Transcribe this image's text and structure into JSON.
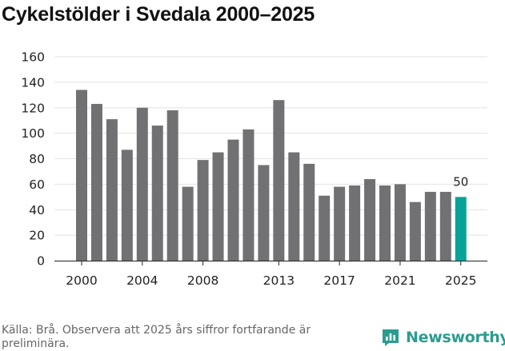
{
  "title": "Cykelstölder i Svedala 2000–2025",
  "source": "Källa: Brå. Observera att 2025 års siffror fortfarande är preliminära.",
  "brand": {
    "name": "Newsworthy",
    "icon": "newsworthy-logo-icon"
  },
  "colors": {
    "bar": "#717073",
    "highlight": "#08a398",
    "grid": "#e2e2e2",
    "brand": "#2a9d8f"
  },
  "chart_data": {
    "type": "bar",
    "title": "Cykelstölder i Svedala 2000–2025",
    "xlabel": "",
    "ylabel": "",
    "ylim": [
      0,
      160
    ],
    "yticks": [
      0,
      20,
      40,
      60,
      80,
      100,
      120,
      140,
      160
    ],
    "xtick_labels": [
      "2000",
      "2004",
      "2008",
      "2013",
      "2017",
      "2021",
      "2025"
    ],
    "categories": [
      "2000",
      "2001",
      "2002",
      "2003",
      "2004",
      "2005",
      "2006",
      "2007",
      "2008",
      "2009",
      "2010",
      "2011",
      "2012",
      "2013",
      "2014",
      "2015",
      "2016",
      "2017",
      "2018",
      "2019",
      "2020",
      "2021",
      "2022",
      "2023",
      "2024",
      "2025"
    ],
    "values": [
      134,
      123,
      111,
      87,
      120,
      106,
      118,
      58,
      79,
      85,
      95,
      103,
      75,
      126,
      85,
      76,
      51,
      58,
      59,
      64,
      59,
      60,
      46,
      54,
      54,
      50
    ],
    "highlight_category": "2025",
    "data_labels": [
      {
        "category": "2025",
        "text": "50"
      }
    ],
    "grid": true,
    "legend": "none"
  }
}
